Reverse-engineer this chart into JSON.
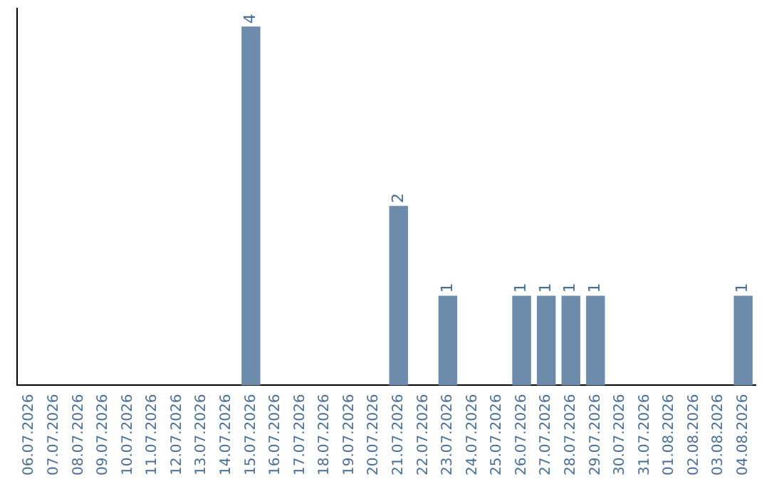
{
  "chart_data": {
    "type": "bar",
    "categories": [
      "06.07.2026",
      "07.07.2026",
      "08.07.2026",
      "09.07.2026",
      "10.07.2026",
      "11.07.2026",
      "12.07.2026",
      "13.07.2026",
      "14.07.2026",
      "15.07.2026",
      "16.07.2026",
      "17.07.2026",
      "18.07.2026",
      "19.07.2026",
      "20.07.2026",
      "21.07.2026",
      "22.07.2026",
      "23.07.2026",
      "24.07.2026",
      "25.07.2026",
      "26.07.2026",
      "27.07.2026",
      "28.07.2026",
      "29.07.2026",
      "30.07.2026",
      "31.07.2026",
      "01.08.2026",
      "02.08.2026",
      "03.08.2026",
      "04.08.2026"
    ],
    "values": [
      0,
      0,
      0,
      0,
      0,
      0,
      0,
      0,
      0,
      4,
      0,
      0,
      0,
      0,
      0,
      2,
      0,
      1,
      0,
      0,
      1,
      1,
      1,
      1,
      0,
      0,
      0,
      0,
      0,
      1
    ],
    "value_labels": [
      null,
      null,
      null,
      null,
      null,
      null,
      null,
      null,
      null,
      "4",
      null,
      null,
      null,
      null,
      null,
      "2",
      null,
      "1",
      null,
      null,
      "1",
      "1",
      "1",
      "1",
      null,
      null,
      null,
      null,
      null,
      "1"
    ],
    "color": "#6d8cab",
    "tick_labels": "x",
    "grid": false,
    "legend": false
  }
}
